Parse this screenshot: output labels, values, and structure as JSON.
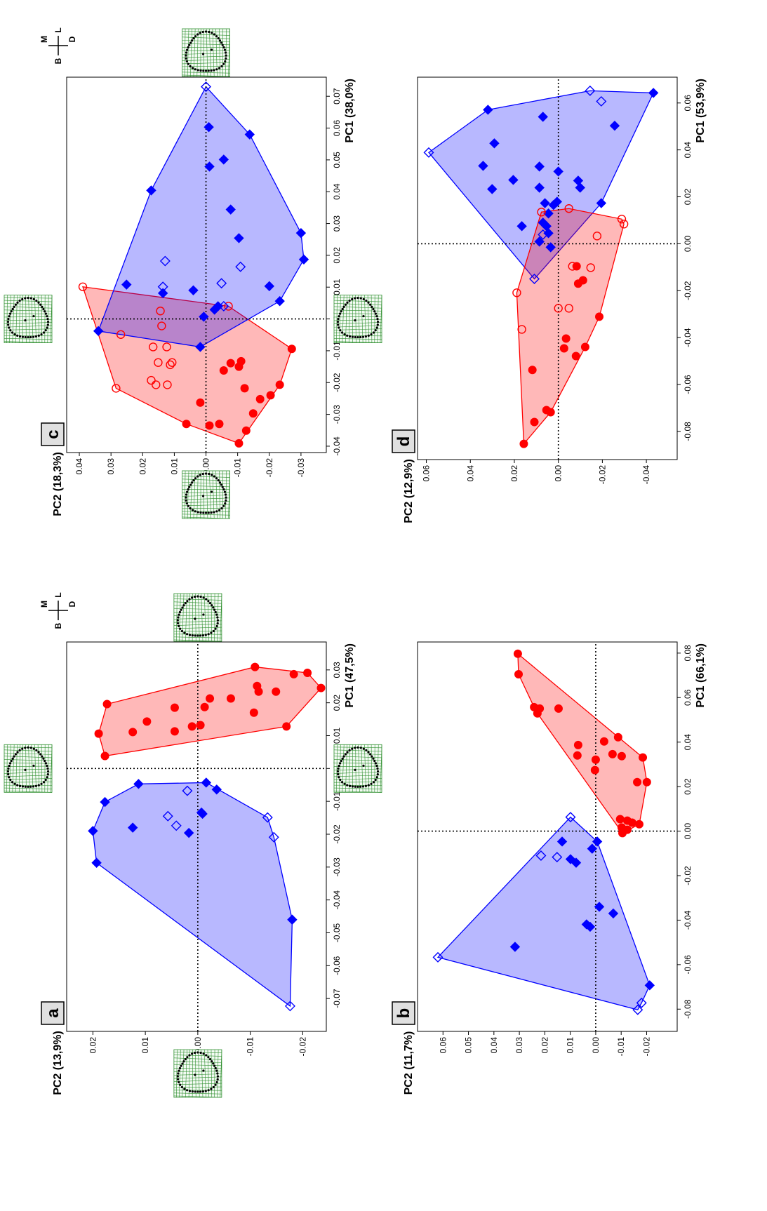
{
  "chart_data": [
    {
      "type": "scatter",
      "label": "a",
      "xlabel": "PC1 (47,5%)",
      "ylabel": "PC2 (13,9%)",
      "xlim": [
        -0.08,
        0.0385
      ],
      "ylim": [
        -0.0245,
        0.025
      ],
      "xticks": [
        -0.07,
        -0.06,
        -0.05,
        -0.04,
        -0.03,
        -0.02,
        -0.01,
        {
          "value": 0,
          "label": "0.00"
        },
        0.01,
        0.02,
        0.03
      ],
      "yticks": [
        -0.02,
        -0.01,
        {
          "value": 0,
          "label": "0.00"
        },
        0.01,
        0.02
      ],
      "zero_lines": true,
      "convex_hulls": true,
      "deformation_grids": true,
      "orientation_labels": [
        "M",
        "L",
        "B",
        "D"
      ],
      "series": [
        {
          "color": "#0000ff",
          "marker": "diamond",
          "filled": true,
          "x": [
            -0.0102,
            -0.019,
            -0.018,
            -0.0287,
            -0.0047,
            -0.0196,
            -0.0134,
            -0.0138,
            -0.0043,
            -0.0064,
            -0.046
          ],
          "values": [
            0.0177,
            0.02,
            0.0124,
            0.0193,
            0.0113,
            0.0017,
            -0.0007,
            -0.0009,
            -0.0016,
            -0.0036,
            -0.018
          ]
        },
        {
          "color": "#0000ff",
          "marker": "diamond",
          "filled": false,
          "x": [
            -0.0145,
            -0.0174,
            -0.0068,
            -0.0149,
            -0.0209,
            -0.0723
          ],
          "values": [
            0.0057,
            0.0041,
            0.002,
            -0.0133,
            -0.0145,
            -0.0176
          ]
        },
        {
          "color": "#ff0000",
          "marker": "circle",
          "filled": true,
          "x": [
            0.0038,
            0.0106,
            0.0111,
            0.0143,
            0.0113,
            0.0185,
            0.0128,
            0.0132,
            0.0187,
            0.0213,
            0.0213,
            0.017,
            0.0234,
            0.0251,
            0.0309,
            0.0234,
            0.0128,
            0.0287,
            0.0291,
            0.0245,
            0.0196
          ],
          "values": [
            0.0177,
            0.0189,
            0.0124,
            0.0097,
            0.0044,
            0.0044,
            0.0011,
            -0.0005,
            -0.0013,
            -0.0023,
            -0.0063,
            -0.0107,
            -0.0116,
            -0.0113,
            -0.0109,
            -0.0149,
            -0.0169,
            -0.0183,
            -0.0209,
            -0.0235,
            0.0173
          ]
        }
      ]
    },
    {
      "type": "scatter",
      "label": "b",
      "xlabel": "PC1 (66,1%)",
      "ylabel": "PC2 (11,7%)",
      "xlim": [
        -0.09,
        0.085
      ],
      "ylim": [
        -0.032,
        0.07
      ],
      "xticks": [
        -0.08,
        -0.06,
        -0.04,
        -0.02,
        {
          "value": 0,
          "label": "0.00"
        },
        0.02,
        0.04,
        0.06,
        0.08
      ],
      "yticks": [
        -0.02,
        -0.01,
        {
          "value": 0,
          "label": "0.00"
        },
        0.01,
        0.02,
        0.03,
        0.04,
        0.05,
        0.06
      ],
      "zero_lines": true,
      "convex_hulls": true,
      "deformation_grids": false,
      "series": [
        {
          "color": "#0000ff",
          "marker": "diamond",
          "filled": true,
          "x": [
            -0.052,
            -0.0047,
            -0.0126,
            -0.0142,
            -0.0079,
            -0.0047,
            -0.034,
            -0.0419,
            -0.043,
            -0.037,
            -0.0693
          ],
          "values": [
            0.0317,
            0.0132,
            0.0099,
            0.0077,
            0.0014,
            -0.0006,
            -0.0014,
            0.0036,
            0.0022,
            -0.0069,
            -0.0212
          ]
        },
        {
          "color": "#0000ff",
          "marker": "diamond",
          "filled": false,
          "x": [
            -0.011,
            -0.0117,
            0.0063,
            -0.0567,
            -0.0803,
            -0.0772
          ],
          "values": [
            0.0215,
            0.0152,
            0.0099,
            0.062,
            -0.0165,
            -0.018
          ]
        },
        {
          "color": "#ff0000",
          "marker": "circle",
          "filled": true,
          "x": [
            0.034,
            0.0387,
            0.0274,
            0.0321,
            0.0403,
            0.0422,
            0.0346,
            0.0337,
            0.0331,
            0.022,
            0.022,
            0.0054,
            0.0047,
            0.0038,
            0.0031,
            0.0016,
            0.0006,
            -0.0009,
            0.0557,
            0.0551,
            0.0529,
            0.0551,
            0.0797,
            0.0705
          ],
          "values": [
            0.0072,
            0.0069,
            0.0003,
            0,
            -0.0033,
            -0.0088,
            -0.0066,
            -0.0102,
            -0.0185,
            -0.0163,
            -0.0201,
            -0.0096,
            -0.0124,
            -0.0143,
            -0.0171,
            -0.0102,
            -0.0124,
            -0.0105,
            0.0242,
            0.022,
            0.0229,
            0.0146,
            0.0306,
            0.0303
          ]
        }
      ]
    },
    {
      "type": "scatter",
      "label": "c",
      "xlabel": "PC1 (38,0%)",
      "ylabel": "PC2 (18,3%)",
      "xlim": [
        -0.042,
        0.076
      ],
      "ylim": [
        -0.038,
        0.044
      ],
      "xticks": [
        -0.04,
        -0.03,
        -0.02,
        -0.01,
        {
          "value": 0,
          "label": "0.00"
        },
        0.01,
        0.02,
        0.03,
        0.04,
        0.05,
        0.06,
        0.07
      ],
      "yticks": [
        -0.03,
        -0.02,
        -0.01,
        {
          "value": 0,
          "label": "0.00"
        },
        0.01,
        0.02,
        0.03,
        0.04
      ],
      "zero_lines": true,
      "convex_hulls": true,
      "deformation_grids": true,
      "orientation_labels": [
        "M",
        "L",
        "B",
        "D"
      ],
      "series": [
        {
          "color": "#ff0000",
          "marker": "circle",
          "filled": false,
          "x": [
            0.0101,
            -0.0218,
            -0.0049,
            0.0025,
            -0.0022,
            -0.0088,
            -0.0088,
            -0.0137,
            -0.0144,
            -0.0137,
            -0.0193,
            -0.0207,
            -0.0207,
            0.004
          ],
          "values": [
            0.0389,
            0.0284,
            0.0269,
            0.0144,
            0.014,
            0.0167,
            0.0124,
            0.0107,
            0.0113,
            0.0151,
            0.0173,
            0.0158,
            0.0122,
            -0.0071
          ]
        },
        {
          "color": "#ff0000",
          "marker": "circle",
          "filled": true,
          "x": [
            -0.033,
            -0.0263,
            -0.0335,
            -0.033,
            -0.0162,
            -0.0139,
            -0.015,
            -0.0133,
            -0.0218,
            -0.0297,
            -0.0252,
            -0.024,
            -0.0207,
            -0.0094,
            -0.0391,
            -0.0351
          ],
          "values": [
            0.0062,
            0.0018,
            -0.0011,
            -0.0042,
            -0.0056,
            -0.0078,
            -0.0104,
            -0.0111,
            -0.0122,
            -0.0149,
            -0.0171,
            -0.0204,
            -0.0233,
            -0.0271,
            -0.0104,
            -0.0127
          ]
        },
        {
          "color": "#0000ff",
          "marker": "diamond",
          "filled": true,
          "x": [
            -0.0038,
            0.0108,
            0.0404,
            0.058,
            0.027,
            0.0187,
            0.0056,
            0.0103,
            0.0254,
            0.0344,
            0.0501,
            0.0479,
            0.0603,
            -0.0088,
            0.009,
            0.0007,
            0.0029,
            0.004,
            0.0081
          ],
          "values": [
            0.034,
            0.0251,
            0.0173,
            -0.0138,
            -0.03,
            -0.0309,
            -0.0233,
            -0.02,
            -0.0104,
            -0.0078,
            -0.0056,
            -0.0011,
            -0.0009,
            0.0018,
            0.004,
            0.0007,
            -0.0027,
            -0.0038,
            0.0136
          ]
        },
        {
          "color": "#0000ff",
          "marker": "diamond",
          "filled": false,
          "x": [
            0.0182,
            0.0101,
            0.0112,
            0.0164,
            0.073,
            0.004
          ],
          "values": [
            0.0129,
            0.0136,
            -0.0049,
            -0.0109,
            0,
            -0.0056
          ]
        }
      ]
    },
    {
      "type": "scatter",
      "label": "d",
      "xlabel": "PC1 (53,9%)",
      "ylabel": "PC2 (12,9%)",
      "xlim": [
        -0.092,
        0.071
      ],
      "ylim": [
        -0.054,
        0.064
      ],
      "xticks": [
        -0.08,
        -0.06,
        -0.04,
        -0.02,
        {
          "value": 0,
          "label": "0.00"
        },
        0.02,
        0.04,
        0.06
      ],
      "yticks": [
        -0.04,
        -0.02,
        {
          "value": 0,
          "label": "0.00"
        },
        0.02,
        0.04,
        0.06
      ],
      "zero_lines": true,
      "convex_hulls": true,
      "deformation_grids": false,
      "series": [
        {
          "color": "#0000ff",
          "marker": "diamond",
          "filled": true,
          "x": [
            0.0571,
            0.0428,
            0.0332,
            0.0233,
            0.0272,
            0.0329,
            0.0541,
            0.0239,
            0.0308,
            0.0269,
            0.0239,
            0.0503,
            0.0643,
            0.0173,
            0.0075,
            0.0173,
            0.0165,
            0.0179,
            0.0129,
            0.009,
            0.0075,
            0.0045,
            0.0009,
            -0.0015
          ],
          "values": [
            0.032,
            0.0291,
            0.0342,
            0.0301,
            0.0205,
            0.0086,
            0.007,
            0.0086,
            0,
            -0.009,
            -0.0099,
            -0.0256,
            -0.0432,
            -0.0195,
            0.0166,
            0.0061,
            0.0022,
            0.0006,
            0.0045,
            0.007,
            0.0054,
            0.0045,
            0.0086,
            0.0035
          ]
        },
        {
          "color": "#0000ff",
          "marker": "diamond",
          "filled": false,
          "x": [
            0.0389,
            0.0652,
            0.0607,
            0.0039,
            -0.015
          ],
          "values": [
            0.0589,
            -0.0144,
            -0.0195,
            0.007,
            0.0109
          ]
        },
        {
          "color": "#ff0000",
          "marker": "circle",
          "filled": true,
          "x": [
            -0.0853,
            -0.076,
            -0.0709,
            -0.0718,
            -0.0538,
            -0.0446,
            -0.0404,
            -0.0479,
            -0.044,
            -0.0311,
            -0.017,
            -0.0156,
            -0.0096
          ],
          "values": [
            0.0157,
            0.0109,
            0.0054,
            0.0035,
            0.0118,
            -0.0026,
            -0.0035,
            -0.008,
            -0.0122,
            -0.0186,
            -0.009,
            -0.0112,
            -0.0083
          ]
        },
        {
          "color": "#ff0000",
          "marker": "circle",
          "filled": false,
          "x": [
            -0.0365,
            -0.0275,
            -0.0275,
            -0.0096,
            -0.0102,
            0.0033,
            0.0105,
            0.0084,
            -0.0209,
            0.0135,
            0.015
          ],
          "values": [
            0.0166,
            0,
            -0.0048,
            -0.0064,
            -0.0147,
            -0.0176,
            -0.0288,
            -0.0298,
            0.0189,
            0.0077,
            -0.0048
          ]
        }
      ]
    }
  ]
}
